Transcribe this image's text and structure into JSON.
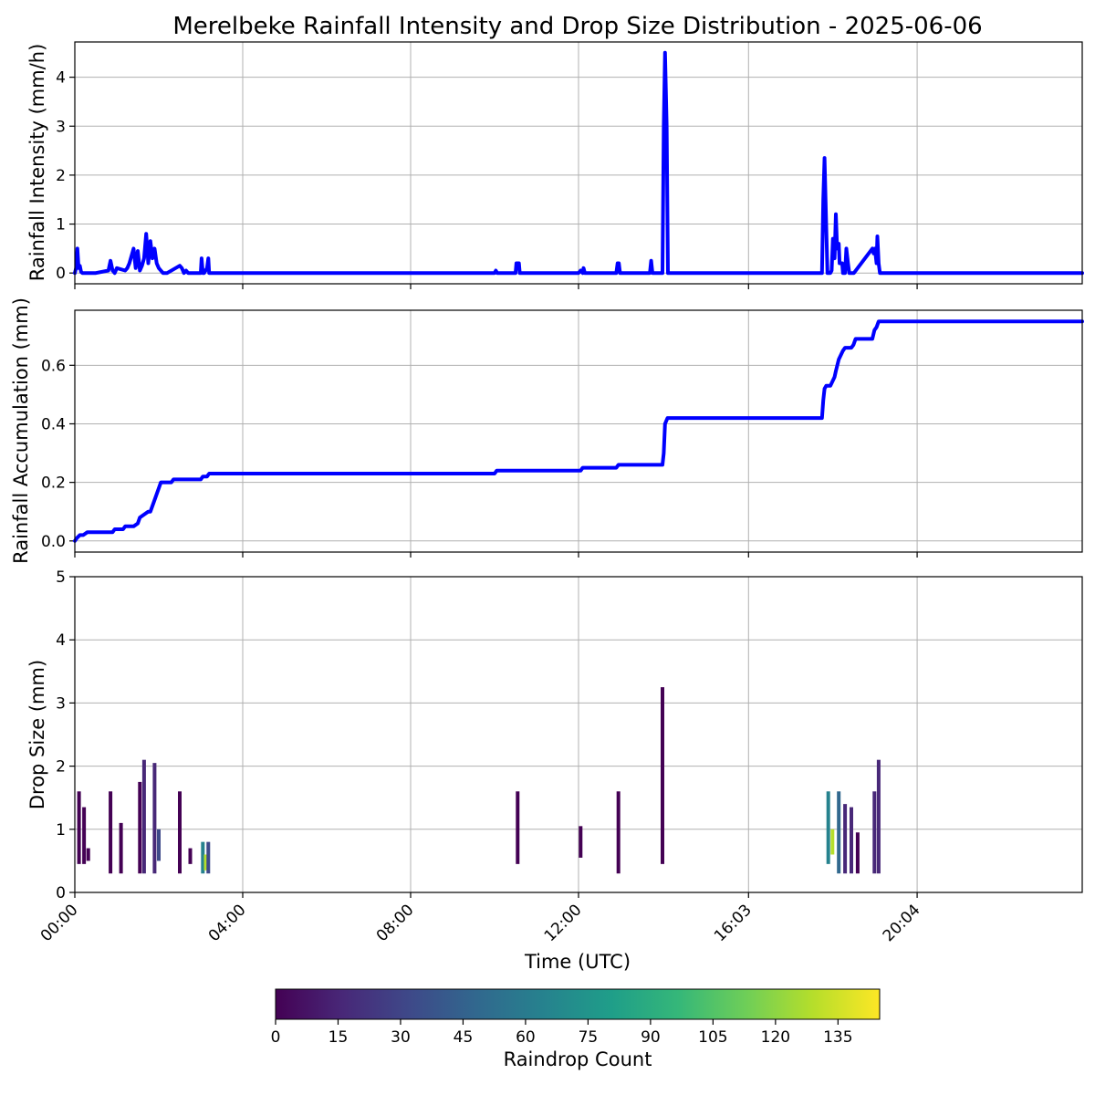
{
  "chart_data": [
    {
      "type": "line",
      "title": "Merelbeke Rainfall Intensity and Drop Size Distribution - 2025-06-06",
      "ylabel": "Rainfall Intensity (mm/h)",
      "xlabel": "",
      "xlim": [
        0,
        24
      ],
      "ylim": [
        -0.22,
        4.72
      ],
      "yticks": [
        0,
        1,
        2,
        3,
        4
      ],
      "grid": true,
      "color": "#0000ff",
      "series": [
        {
          "x": [
            0,
            0.03,
            0.06,
            0.09,
            0.12,
            0.15,
            0.18,
            0.2,
            0.23,
            0.26,
            0.5,
            0.8,
            0.85,
            0.9,
            0.95,
            1.0,
            1.2,
            1.25,
            1.3,
            1.4,
            1.45,
            1.5,
            1.55,
            1.6,
            1.65,
            1.7,
            1.75,
            1.8,
            1.85,
            1.9,
            1.95,
            2.0,
            2.05,
            2.1,
            2.15,
            2.2,
            2.5,
            2.55,
            2.6,
            2.65,
            2.7,
            2.8,
            2.85,
            3.0,
            3.02,
            3.05,
            3.08,
            3.15,
            3.18,
            3.2,
            3.23,
            10.0,
            10.03,
            10.06,
            10.5,
            10.52,
            10.55,
            10.58,
            10.6,
            12.0,
            12.05,
            12.1,
            12.12,
            12.15,
            12.18,
            12.9,
            12.93,
            12.96,
            12.99,
            13.7,
            13.73,
            13.76,
            14.0,
            14.03,
            14.06,
            14.1,
            14.13,
            14.16,
            14.19,
            17.8,
            17.83,
            17.86,
            17.9,
            17.93,
            18.0,
            18.03,
            18.06,
            18.1,
            18.13,
            18.16,
            18.2,
            18.22,
            18.25,
            18.28,
            18.3,
            18.35,
            18.38,
            18.42,
            18.45,
            18.48,
            18.52,
            18.56,
            19.0,
            19.03,
            19.06,
            19.1,
            19.12,
            19.15,
            19.18,
            19.22,
            24.0
          ],
          "y": [
            0,
            0.1,
            0.5,
            0.1,
            0.15,
            0.02,
            0,
            0,
            0,
            0,
            0,
            0.05,
            0.25,
            0.05,
            0,
            0.1,
            0.05,
            0.1,
            0.2,
            0.5,
            0.1,
            0.45,
            0.05,
            0.15,
            0.3,
            0.8,
            0.2,
            0.65,
            0.3,
            0.5,
            0.2,
            0.1,
            0.05,
            0,
            0,
            0,
            0.15,
            0.1,
            0,
            0.05,
            0,
            0,
            0,
            0,
            0.3,
            0,
            0,
            0.1,
            0.3,
            0,
            0,
            0,
            0.05,
            0,
            0,
            0.2,
            0.2,
            0.2,
            0,
            0,
            0.05,
            0,
            0.1,
            0,
            0,
            0,
            0.2,
            0.2,
            0,
            0,
            0.25,
            0,
            0,
            3.0,
            4.5,
            3.0,
            0,
            0,
            0,
            0,
            1.5,
            2.35,
            1.0,
            0,
            0,
            0.05,
            0.7,
            0.3,
            1.2,
            0.5,
            0.6,
            0.2,
            0.2,
            0.2,
            0,
            0,
            0.5,
            0.2,
            0,
            0,
            0,
            0,
            0.5,
            0.4,
            0.5,
            0.2,
            0.75,
            0.2,
            0,
            0,
            0
          ]
        }
      ]
    },
    {
      "type": "line",
      "ylabel": "Rainfall Accumulation (mm)",
      "xlabel": "",
      "xlim": [
        0,
        24
      ],
      "ylim": [
        -0.038,
        0.788
      ],
      "yticks": [
        "0.0",
        "0.2",
        "0.4",
        "0.6"
      ],
      "grid": true,
      "color": "#0000ff",
      "series": [
        {
          "x": [
            0,
            0.05,
            0.12,
            0.2,
            0.3,
            0.35,
            0.9,
            0.95,
            1.15,
            1.2,
            1.4,
            1.5,
            1.55,
            1.65,
            1.75,
            1.8,
            1.85,
            1.9,
            2.0,
            2.05,
            2.3,
            2.35,
            2.65,
            2.8,
            2.85,
            3.0,
            3.05,
            3.15,
            3.2,
            10.0,
            10.05,
            10.5,
            10.55,
            12.05,
            12.1,
            12.15,
            12.9,
            12.95,
            14.0,
            14.03,
            14.06,
            14.12,
            17.8,
            17.83,
            17.86,
            17.9,
            18.0,
            18.1,
            18.13,
            18.2,
            18.3,
            18.35,
            18.5,
            18.55,
            18.6,
            19.0,
            19.05,
            19.1,
            19.15,
            19.22,
            24.0
          ],
          "y": [
            0,
            0.01,
            0.02,
            0.02,
            0.03,
            0.03,
            0.03,
            0.04,
            0.04,
            0.05,
            0.05,
            0.06,
            0.08,
            0.09,
            0.1,
            0.1,
            0.12,
            0.14,
            0.18,
            0.2,
            0.2,
            0.21,
            0.21,
            0.21,
            0.21,
            0.21,
            0.22,
            0.22,
            0.23,
            0.23,
            0.24,
            0.24,
            0.24,
            0.24,
            0.25,
            0.25,
            0.25,
            0.26,
            0.26,
            0.3,
            0.4,
            0.42,
            0.42,
            0.48,
            0.52,
            0.53,
            0.53,
            0.56,
            0.58,
            0.62,
            0.65,
            0.66,
            0.66,
            0.67,
            0.69,
            0.69,
            0.72,
            0.73,
            0.75,
            0.75,
            0.75
          ]
        }
      ]
    },
    {
      "type": "heatmap",
      "ylabel": "Drop Size (mm)",
      "xlabel": "Time (UTC)",
      "xlim": [
        0,
        24
      ],
      "ylim": [
        0,
        5
      ],
      "yticks": [
        0,
        1,
        2,
        3,
        4,
        5
      ],
      "xtick_values": [
        0,
        4,
        8,
        12,
        16.05,
        20.067
      ],
      "xtick_labels": [
        "00:00",
        "04:00",
        "08:00",
        "12:00",
        "16:03",
        "20:04"
      ],
      "grid": true,
      "columns": [
        {
          "t": 0.1,
          "d0": 0.45,
          "d1": 1.6,
          "count": 6
        },
        {
          "t": 0.22,
          "d0": 0.45,
          "d1": 1.35,
          "count": 6
        },
        {
          "t": 0.32,
          "d0": 0.5,
          "d1": 0.7,
          "count": 5
        },
        {
          "t": 0.85,
          "d0": 0.3,
          "d1": 1.6,
          "count": 8
        },
        {
          "t": 1.1,
          "d0": 0.3,
          "d1": 1.1,
          "count": 6
        },
        {
          "t": 1.55,
          "d0": 0.3,
          "d1": 1.75,
          "count": 8
        },
        {
          "t": 1.65,
          "d0": 0.3,
          "d1": 2.1,
          "count": 9
        },
        {
          "t": 1.9,
          "d0": 0.3,
          "d1": 2.05,
          "count": 10
        },
        {
          "t": 2.0,
          "d0": 0.5,
          "d1": 1.0,
          "count": 30
        },
        {
          "t": 2.5,
          "d0": 0.3,
          "d1": 1.6,
          "count": 8
        },
        {
          "t": 2.75,
          "d0": 0.45,
          "d1": 0.7,
          "count": 5
        },
        {
          "t": 3.05,
          "d0": 0.3,
          "d1": 0.8,
          "count": 70
        },
        {
          "t": 3.12,
          "d0": 0.35,
          "d1": 0.6,
          "count": 130
        },
        {
          "t": 3.18,
          "d0": 0.3,
          "d1": 0.8,
          "count": 40
        },
        {
          "t": 10.55,
          "d0": 0.45,
          "d1": 1.6,
          "count": 6
        },
        {
          "t": 12.05,
          "d0": 0.55,
          "d1": 1.05,
          "count": 5
        },
        {
          "t": 12.95,
          "d0": 0.3,
          "d1": 1.6,
          "count": 6
        },
        {
          "t": 14.0,
          "d0": 0.45,
          "d1": 3.25,
          "count": 7
        },
        {
          "t": 17.95,
          "d0": 0.45,
          "d1": 1.6,
          "count": 60
        },
        {
          "t": 18.05,
          "d0": 0.6,
          "d1": 1.0,
          "count": 130
        },
        {
          "t": 18.2,
          "d0": 0.3,
          "d1": 1.6,
          "count": 45
        },
        {
          "t": 18.35,
          "d0": 0.3,
          "d1": 1.4,
          "count": 20
        },
        {
          "t": 18.5,
          "d0": 0.3,
          "d1": 1.35,
          "count": 12
        },
        {
          "t": 18.65,
          "d0": 0.3,
          "d1": 0.95,
          "count": 8
        },
        {
          "t": 19.05,
          "d0": 0.3,
          "d1": 1.6,
          "count": 10
        },
        {
          "t": 19.15,
          "d0": 0.3,
          "d1": 2.1,
          "count": 15
        }
      ]
    }
  ],
  "colorbar": {
    "label": "Raindrop Count",
    "range": [
      0,
      145
    ],
    "ticks": [
      "0",
      "15",
      "30",
      "45",
      "60",
      "75",
      "90",
      "105",
      "120",
      "135"
    ],
    "colormap": "viridis"
  }
}
